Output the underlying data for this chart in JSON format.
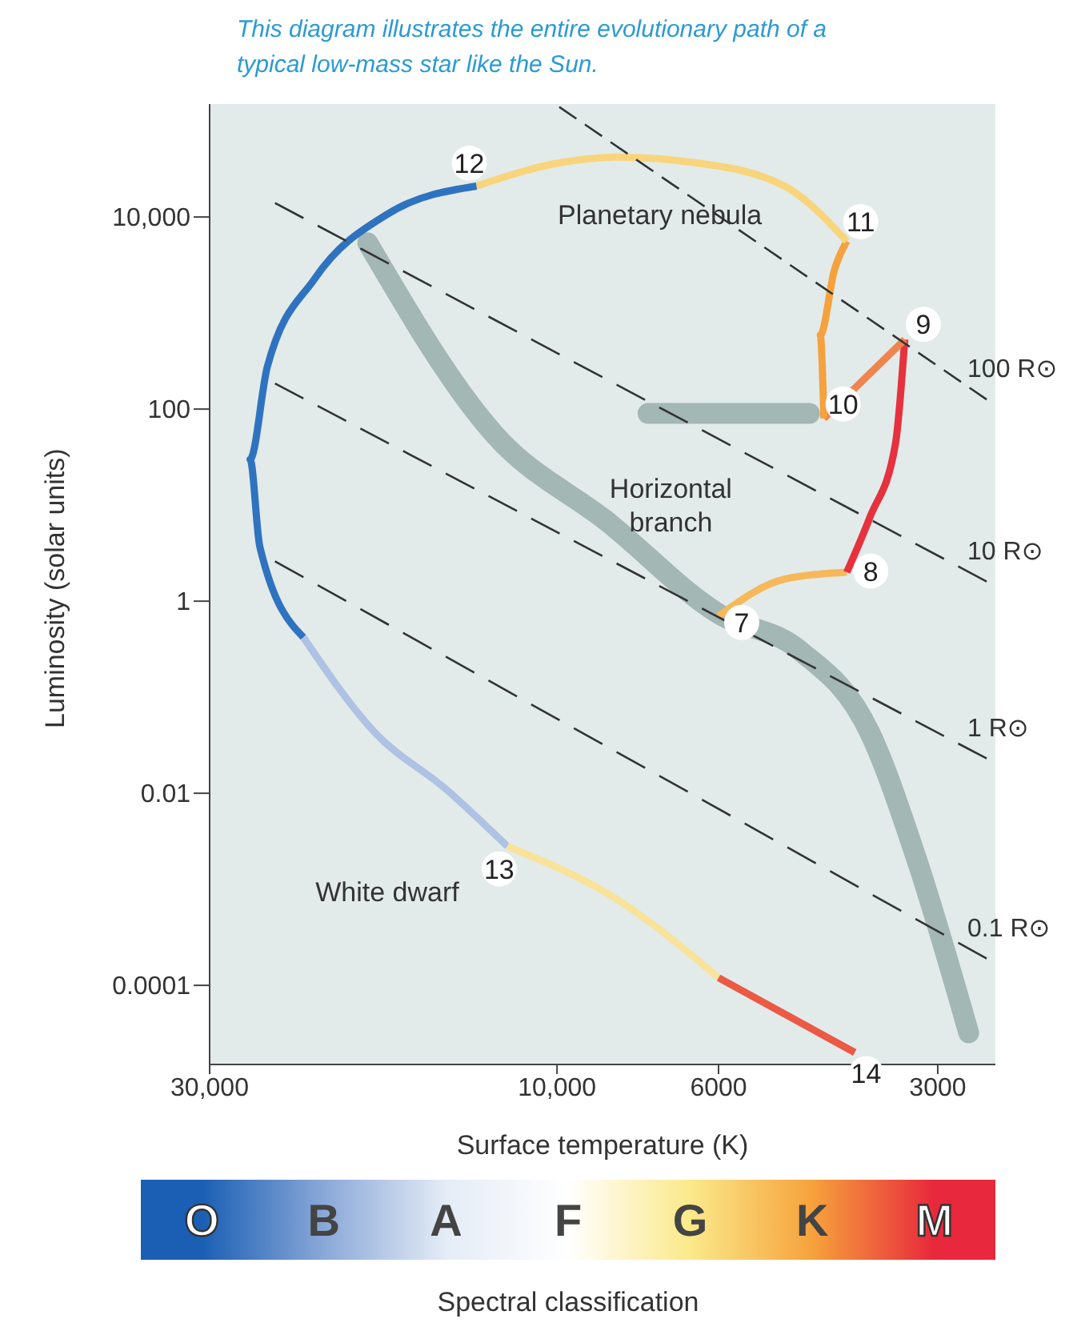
{
  "chart_data": [
    {
      "type": "line",
      "title": "This diagram illustrates the entire evolutionary path of a typical low-mass star like the Sun.",
      "xlabel": "Surface temperature (K)",
      "ylabel": "Luminosity (solar units)",
      "log": "xy",
      "xlim": [
        30000,
        2500
      ],
      "xticks": [
        {
          "value": 30000,
          "label": "30,000"
        },
        {
          "value": 10000,
          "label": "10,000"
        },
        6000,
        3000
      ],
      "ylim": [
        1.5e-05,
        150000
      ],
      "yticks": [
        0.0001,
        0.01,
        1,
        100,
        {
          "value": 10000,
          "label": "10,000"
        }
      ],
      "series": [
        {
          "color": "#98aeab",
          "x": [
            18200,
            12200,
            8500,
            6000,
            4650,
            3720,
            3210,
            2720
          ],
          "values": [
            5400,
            55,
            6.6,
            0.74,
            0.31,
            0.043,
            0.0021,
            3.2e-05
          ]
        },
        {
          "color": "#98aeab",
          "x": [
            7500,
            4500
          ],
          "values": [
            90,
            90
          ]
        },
        {
          "color": "#f7b85a",
          "x": [
            6000,
            4860,
            4000
          ],
          "values": [
            0.7,
            1.7,
            2
          ]
        },
        {
          "color": "#e5323e",
          "x": [
            4000,
            3720,
            3430,
            3330
          ],
          "values": [
            2,
            7.4,
            43,
            530
          ]
        },
        {
          "color": "#f0844e",
          "x": [
            3330,
            4300
          ],
          "values": [
            530,
            80
          ]
        },
        {
          "color": "#f5a23e",
          "x": [
            4300,
            4350,
            4160,
            4000
          ],
          "values": [
            80,
            590,
            2800,
            5600
          ]
        },
        {
          "color": "#f8d57c",
          "x": [
            4000,
            4870,
            6500,
            8300,
            9860,
            12900
          ],
          "values": [
            5600,
            21000,
            37000,
            42000,
            37000,
            21000
          ]
        },
        {
          "color": "#2f73c0",
          "x": [
            12900,
            17100,
            21500,
            25000,
            26400,
            25600,
            22300
          ],
          "values": [
            21000,
            10700,
            2300,
            275,
            30,
            3.7,
            0.42
          ]
        },
        {
          "color": "#aec2e3",
          "x": [
            22300,
            17800,
            14200,
            11700
          ],
          "values": [
            0.42,
            0.043,
            0.011,
            0.0028
          ]
        },
        {
          "color": "#f9e39a",
          "x": [
            11700,
            8300,
            6000
          ],
          "values": [
            0.0028,
            0.0008,
            0.00012
          ]
        },
        {
          "color": "#ea5a44",
          "x": [
            6000,
            3900
          ],
          "values": [
            0.00012,
            2e-05
          ]
        },
        {
          "name": "100 R⊙",
          "color": "#333333",
          "line_style": "dashed",
          "x": [
            9930,
            2570
          ],
          "values": [
            140000,
            126
          ]
        },
        {
          "name": "10 R⊙",
          "color": "#333333",
          "line_style": "dashed",
          "x": [
            24400,
            2570
          ],
          "values": [
            14000,
            1.6
          ]
        },
        {
          "name": "1 R⊙",
          "color": "#333333",
          "line_style": "dashed",
          "x": [
            24400,
            2570
          ],
          "values": [
            185,
            0.023
          ]
        },
        {
          "name": "0.1 R⊙",
          "color": "#333333",
          "line_style": "dashed",
          "x": [
            24400,
            2570
          ],
          "values": [
            2.6,
            0.00019
          ]
        }
      ],
      "annotations": [
        {
          "text": "7",
          "x": 6000,
          "y": 0.7
        },
        {
          "text": "8",
          "x": 4000,
          "y": 2
        },
        {
          "text": "9",
          "x": 3330,
          "y": 530
        },
        {
          "text": "10",
          "x": 4300,
          "y": 80
        },
        {
          "text": "11",
          "x": 4000,
          "y": 5600
        },
        {
          "text": "12",
          "x": 12900,
          "y": 21000
        },
        {
          "text": "13",
          "x": 11700,
          "y": 0.0028
        },
        {
          "text": "14",
          "x": 3900,
          "y": 2e-05
        },
        "Planetary nebula",
        "Horizontal branch",
        "White dwarf"
      ]
    },
    {
      "type": "other",
      "xlabel": "Spectral classification",
      "categories": [
        "O",
        "B",
        "A",
        "F",
        "G",
        "K",
        "M"
      ],
      "colors": [
        "#1a5fb4",
        "#8aa8d8",
        "#e4ecf6",
        "#ffffff",
        "#fbe98a",
        "#f6a23c",
        "#e8283c"
      ]
    }
  ]
}
